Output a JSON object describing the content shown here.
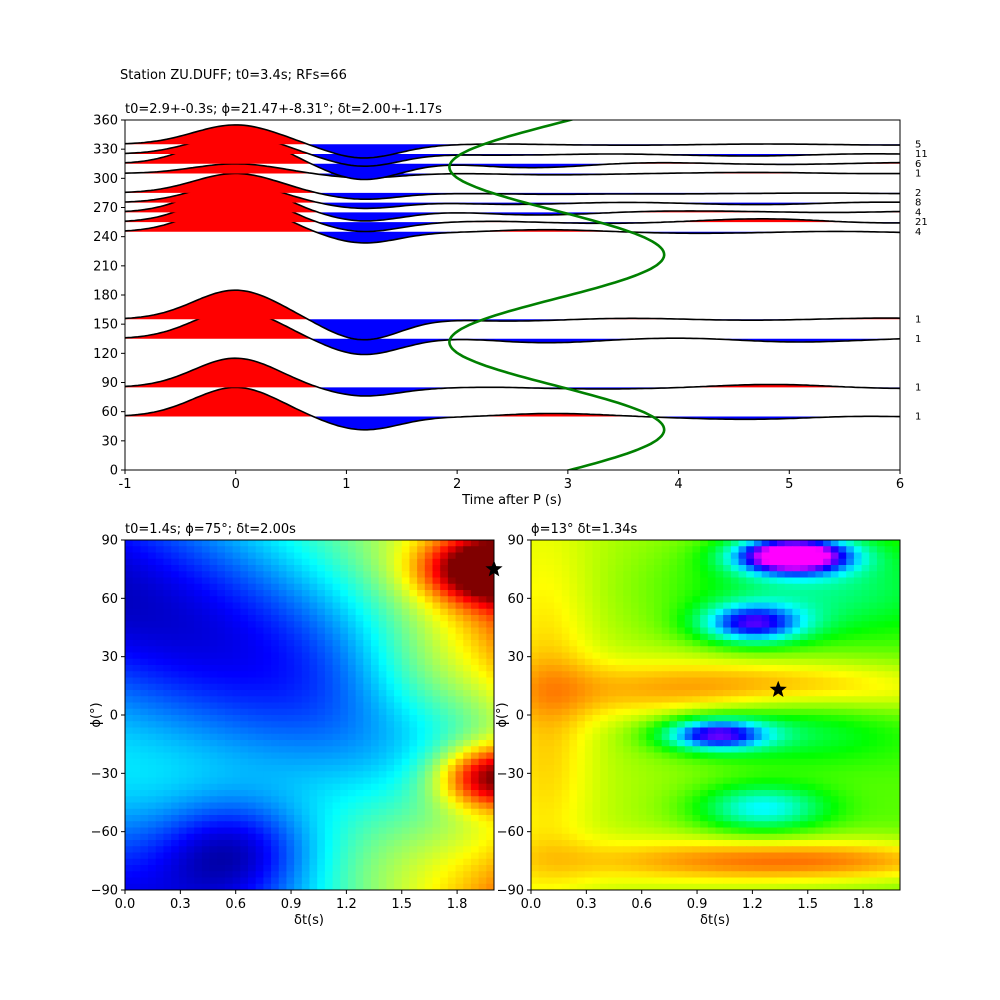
{
  "figure": {
    "suptitle": "Station ZU.DUFF; t0=3.4s; RFs=66"
  },
  "chart_data": [
    {
      "type": "line",
      "title": "t0=2.9+-0.3s; ϕ=21.47+-8.31°; δt=2.00+-1.17s",
      "xlabel": "Time after P (s)",
      "ylabel": "",
      "xlim": [
        -1,
        6
      ],
      "ylim": [
        0,
        360
      ],
      "xticks": [
        -1,
        0,
        1,
        2,
        3,
        4,
        5,
        6
      ],
      "yticks": [
        0,
        30,
        60,
        90,
        120,
        150,
        180,
        210,
        240,
        270,
        300,
        330,
        360
      ],
      "fill_positive_color": "#ff0000",
      "fill_negative_color": "#0000ff",
      "fit_curve_color": "#008000",
      "traces": [
        {
          "baz": 55,
          "count": "1",
          "amp": 30
        },
        {
          "baz": 85,
          "count": "1",
          "amp": 30
        },
        {
          "baz": 135,
          "count": "1",
          "amp": 30
        },
        {
          "baz": 155,
          "count": "1",
          "amp": 30
        },
        {
          "baz": 245,
          "count": "4",
          "amp": 30
        },
        {
          "baz": 255,
          "count": "21",
          "amp": 30
        },
        {
          "baz": 265,
          "count": "4",
          "amp": 30
        },
        {
          "baz": 275,
          "count": "8",
          "amp": 20
        },
        {
          "baz": 285,
          "count": "2",
          "amp": 20
        },
        {
          "baz": 305,
          "count": "1",
          "amp": 10
        },
        {
          "baz": 315,
          "count": "6",
          "amp": 30
        },
        {
          "baz": 325,
          "count": "11",
          "amp": 20
        },
        {
          "baz": 335,
          "count": "5",
          "amp": 20
        }
      ],
      "fit_curve": {
        "t0": 2.9,
        "amplitude": 0.97,
        "period_deg": 180,
        "phase_deg": 21.47
      }
    },
    {
      "type": "heatmap",
      "title": "t0=1.4s; ϕ=75°; δt=2.00s",
      "xlabel": "δt(s)",
      "ylabel": "ϕ(°)",
      "xlim": [
        0,
        2.0
      ],
      "ylim": [
        -90,
        90
      ],
      "xticks": [
        "0.0",
        "0.3",
        "0.6",
        "0.9",
        "1.2",
        "1.5",
        "1.8"
      ],
      "yticks": [
        -90,
        -60,
        -30,
        0,
        30,
        60,
        90
      ],
      "colormap": "jet",
      "best": {
        "dt": 2.0,
        "phi": 75
      }
    },
    {
      "type": "heatmap",
      "title": "ϕ=13° δt=1.34s",
      "xlabel": "δt(s)",
      "ylabel": "ϕ(°)",
      "xlim": [
        0,
        2.0
      ],
      "ylim": [
        -90,
        90
      ],
      "xticks": [
        "0.0",
        "0.3",
        "0.6",
        "0.9",
        "1.2",
        "1.5",
        "1.8"
      ],
      "yticks": [
        -90,
        -60,
        -30,
        0,
        30,
        60,
        90
      ],
      "colormap": "gist_rainbow",
      "best": {
        "dt": 1.34,
        "phi": 13
      }
    }
  ]
}
